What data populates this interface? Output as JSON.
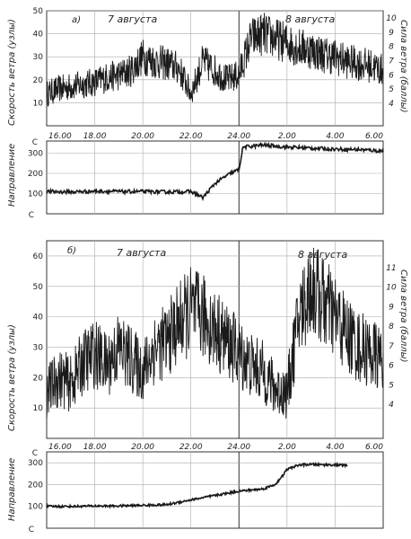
{
  "chart_data": [
    {
      "type": "line",
      "panel_label": "а)",
      "day_labels": [
        "7 августа",
        "8 августа"
      ],
      "ylabel": "Скорость ветра (узлы)",
      "ylabel_right": "Сила ветра (баллы)",
      "ylim": [
        0,
        50
      ],
      "yticks": [
        10,
        20,
        30,
        40,
        50
      ],
      "beaufort_ticks": [
        "4",
        "5",
        "6",
        "7",
        "8",
        "9",
        "10"
      ],
      "grid": true,
      "series": [
        {
          "x": [
            "16:00",
            "16:30",
            "17:00",
            "17:30",
            "18:00",
            "18:30",
            "19:00",
            "19:30",
            "20:00",
            "20:30",
            "21:00",
            "21:30",
            "22:00",
            "22:30",
            "23:00",
            "23:30",
            "24:00",
            "0:30",
            "1:00",
            "1:30",
            "2:00",
            "2:30",
            "3:00",
            "3:30",
            "4:00",
            "4:30",
            "5:00",
            "5:30",
            "6:00"
          ],
          "values": [
            14,
            16,
            17,
            18,
            19,
            21,
            22,
            24,
            30,
            28,
            27,
            25,
            14,
            28,
            24,
            20,
            22,
            38,
            40,
            38,
            36,
            34,
            33,
            31,
            30,
            28,
            27,
            26,
            24
          ]
        }
      ]
    },
    {
      "type": "line",
      "ylabel": "Направление",
      "ylim": [
        0,
        360
      ],
      "yticks": [
        100,
        200,
        300
      ],
      "ytick_labels_extra": [
        "С",
        "С"
      ],
      "xticks": [
        "16.00",
        "18.00",
        "20.00",
        "22.00",
        "24.00",
        "2.00",
        "4.00",
        "6.00"
      ],
      "grid": true,
      "series": [
        {
          "x": [
            "16:00",
            "17:00",
            "18:00",
            "19:00",
            "20:00",
            "21:00",
            "22:00",
            "22:30",
            "23:00",
            "23:30",
            "24:00",
            "24:10",
            "1:00",
            "2:00",
            "3:00",
            "4:00",
            "5:00",
            "6:00"
          ],
          "values": [
            110,
            108,
            112,
            110,
            110,
            108,
            110,
            80,
            150,
            190,
            220,
            330,
            340,
            330,
            325,
            320,
            318,
            310
          ]
        }
      ]
    },
    {
      "type": "line",
      "panel_label": "б)",
      "day_labels": [
        "7 августа",
        "8 августа"
      ],
      "ylabel": "Скорость ветра (узлы)",
      "ylabel_right": "Сила ветра (баллы)",
      "ylim": [
        0,
        65
      ],
      "yticks": [
        10,
        20,
        30,
        40,
        50,
        60
      ],
      "beaufort_ticks": [
        "4",
        "5",
        "6",
        "7",
        "8",
        "9",
        "10",
        "11"
      ],
      "grid": true,
      "series": [
        {
          "x": [
            "16:00",
            "16:30",
            "17:00",
            "17:30",
            "18:00",
            "18:30",
            "19:00",
            "19:30",
            "20:00",
            "20:30",
            "21:00",
            "21:30",
            "22:00",
            "22:30",
            "23:00",
            "23:30",
            "24:00",
            "0:30",
            "1:00",
            "1:30",
            "2:00",
            "2:30",
            "3:00",
            "3:30",
            "4:00",
            "4:30",
            "5:00",
            "5:30",
            "6:00"
          ],
          "values": [
            15,
            20,
            18,
            25,
            28,
            24,
            30,
            26,
            22,
            30,
            32,
            38,
            42,
            40,
            36,
            32,
            28,
            24,
            22,
            16,
            15,
            40,
            50,
            45,
            40,
            34,
            30,
            28,
            26
          ]
        }
      ]
    },
    {
      "type": "line",
      "ylabel": "Направление",
      "ylim": [
        0,
        350
      ],
      "yticks": [
        100,
        200,
        300
      ],
      "ytick_labels_extra": [
        "С",
        "С"
      ],
      "xticks": [
        "16.00",
        "18.00",
        "20.00",
        "22.00",
        "24.00",
        "2.00",
        "4.00",
        "6.00"
      ],
      "grid": true,
      "series": [
        {
          "x": [
            "16:00",
            "17:00",
            "18:00",
            "19:00",
            "20:00",
            "21:00",
            "22:00",
            "23:00",
            "24:00",
            "0:30",
            "1:00",
            "1:30",
            "1:45",
            "2:00",
            "2:30",
            "3:00",
            "4:00",
            "4:30"
          ],
          "values": [
            100,
            100,
            102,
            102,
            105,
            108,
            130,
            150,
            170,
            175,
            180,
            200,
            230,
            270,
            290,
            292,
            290,
            288
          ]
        }
      ]
    }
  ]
}
